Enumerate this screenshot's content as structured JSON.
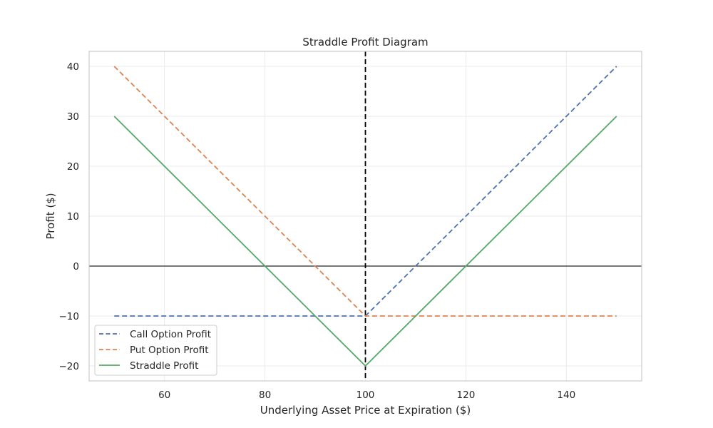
{
  "chart_data": {
    "type": "line",
    "title": "Straddle Profit Diagram",
    "xlabel": "Underlying Asset Price at Expiration ($)",
    "ylabel": "Profit ($)",
    "xlim": [
      45,
      155
    ],
    "ylim": [
      -23,
      43
    ],
    "xticks": [
      60,
      80,
      100,
      120,
      140
    ],
    "yticks": [
      -20,
      -10,
      0,
      10,
      20,
      30,
      40
    ],
    "grid": true,
    "legend_position": "lower-left",
    "reference_lines": [
      {
        "orientation": "horizontal",
        "value": 0,
        "color": "#262626",
        "style": "solid"
      },
      {
        "orientation": "vertical",
        "value": 100,
        "color": "#000000",
        "style": "dashed"
      }
    ],
    "series": [
      {
        "name": "Call Option Profit",
        "color": "#4c72b0",
        "style": "dashed",
        "x": [
          50,
          100,
          150
        ],
        "y": [
          -10,
          -10,
          40
        ]
      },
      {
        "name": "Put Option Profit",
        "color": "#dd8452",
        "style": "dashed",
        "x": [
          50,
          100,
          150
        ],
        "y": [
          40,
          -10,
          -10
        ]
      },
      {
        "name": "Straddle Profit",
        "color": "#55a868",
        "style": "solid",
        "x": [
          50,
          100,
          150
        ],
        "y": [
          30,
          -20,
          30
        ]
      }
    ]
  }
}
